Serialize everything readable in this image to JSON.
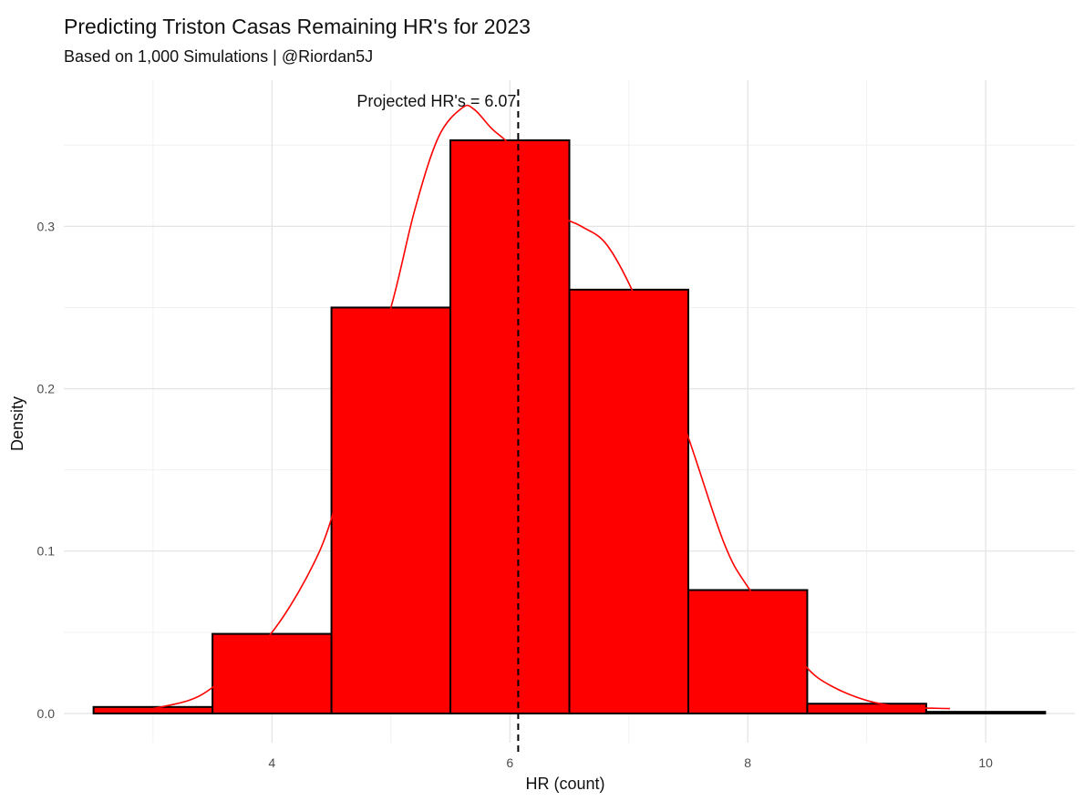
{
  "chart_data": {
    "type": "bar",
    "title": "Predicting Triston Casas Remaining HR's for 2023",
    "subtitle": "Based on 1,000 Simulations | @Riordan5J",
    "xlabel": "HR (count)",
    "ylabel": "Density",
    "xlim": [
      2.25,
      10.75
    ],
    "ylim": [
      -0.018,
      0.39
    ],
    "x_ticks": [
      4,
      6,
      8,
      10
    ],
    "y_ticks": [
      0.0,
      0.1,
      0.2,
      0.3
    ],
    "x_tick_labels": [
      "4",
      "6",
      "8",
      "10"
    ],
    "y_tick_labels": [
      "0.0",
      "0.1",
      "0.2",
      "0.3"
    ],
    "bin_width": 1,
    "bins": [
      {
        "center": 3,
        "density": 0.004
      },
      {
        "center": 4,
        "density": 0.049
      },
      {
        "center": 5,
        "density": 0.25
      },
      {
        "center": 6,
        "density": 0.353
      },
      {
        "center": 7,
        "density": 0.261
      },
      {
        "center": 8,
        "density": 0.076
      },
      {
        "center": 9,
        "density": 0.006
      },
      {
        "center": 10,
        "density": 0.001
      }
    ],
    "density_curve": {
      "x": [
        3.0,
        3.3,
        3.5,
        3.7,
        4.0,
        4.3,
        4.5,
        4.7,
        5.0,
        5.2,
        5.4,
        5.6,
        5.7,
        5.85,
        6.0,
        6.2,
        6.4,
        6.6,
        6.8,
        7.0,
        7.2,
        7.5,
        7.8,
        8.0,
        8.3,
        8.5,
        8.7,
        9.0,
        9.3,
        9.7
      ],
      "y": [
        0.003,
        0.008,
        0.016,
        0.03,
        0.05,
        0.085,
        0.12,
        0.18,
        0.25,
        0.31,
        0.355,
        0.373,
        0.372,
        0.36,
        0.35,
        0.328,
        0.308,
        0.3,
        0.29,
        0.265,
        0.23,
        0.17,
        0.105,
        0.078,
        0.05,
        0.028,
        0.017,
        0.008,
        0.004,
        0.003
      ]
    },
    "vline": {
      "x": 6.07,
      "label": "Projected HR's = 6.07"
    },
    "bar_fill": "#ff0000",
    "bar_stroke": "#000000",
    "curve_color": "#ff0000",
    "grid": true
  }
}
